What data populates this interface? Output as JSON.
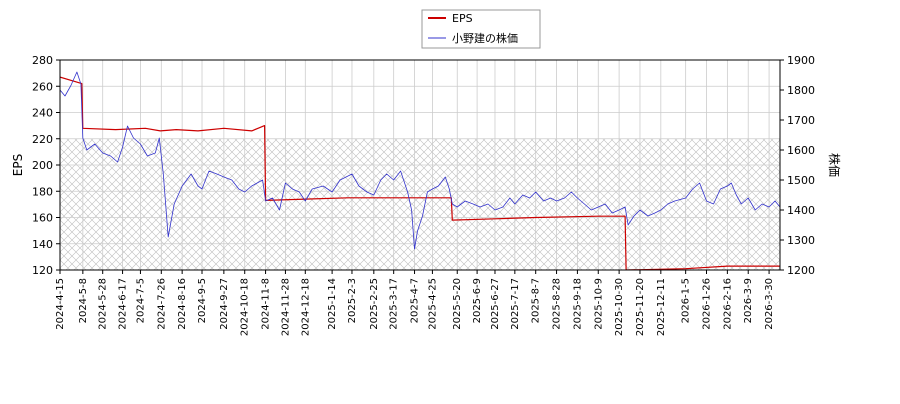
{
  "chart_data": {
    "type": "line",
    "title": "",
    "legend": {
      "placement": "top-center",
      "entries": [
        {
          "name": "EPS",
          "color": "#cc0000"
        },
        {
          "name": "小野建の株価",
          "color": "#3333cc"
        }
      ]
    },
    "xlabel": "",
    "ylabel_left": "EPS",
    "ylabel_right": "株価",
    "ylim_left": [
      120,
      280
    ],
    "ylim_right": [
      1200,
      1900
    ],
    "yticks_left": [
      120,
      140,
      160,
      180,
      200,
      220,
      240,
      260,
      280
    ],
    "yticks_right": [
      1200,
      1300,
      1400,
      1500,
      1600,
      1700,
      1800,
      1900
    ],
    "xlim": [
      "2024-04-15",
      "2026-04-10"
    ],
    "xticks": [
      "2024-4-15",
      "2024-5-8",
      "2024-5-28",
      "2024-6-17",
      "2024-7-5",
      "2024-7-26",
      "2024-8-16",
      "2024-9-5",
      "2024-9-27",
      "2024-10-18",
      "2024-11-8",
      "2024-11-28",
      "2024-12-18",
      "2025-1-14",
      "2025-2-3",
      "2025-2-25",
      "2025-3-17",
      "2025-4-7",
      "2025-4-25",
      "2025-5-20",
      "2025-6-9",
      "2025-6-27",
      "2025-7-17",
      "2025-8-7",
      "2025-8-28",
      "2025-9-18",
      "2025-10-9",
      "2025-10-30",
      "2025-11-20",
      "2025-12-11",
      "2026-1-5",
      "2026-1-26",
      "2026-2-16",
      "2026-3-9",
      "2026-3-30"
    ],
    "grid": true,
    "hatched_band_left": [
      120,
      220
    ],
    "series": [
      {
        "name": "EPS",
        "axis": "left",
        "color": "#cc0000",
        "points": [
          [
            "2024-04-15",
            267
          ],
          [
            "2024-05-07",
            262
          ],
          [
            "2024-05-08",
            228
          ],
          [
            "2024-06-10",
            227
          ],
          [
            "2024-07-10",
            228
          ],
          [
            "2024-07-25",
            226
          ],
          [
            "2024-08-10",
            227
          ],
          [
            "2024-09-01",
            226
          ],
          [
            "2024-09-27",
            228
          ],
          [
            "2024-10-25",
            226
          ],
          [
            "2024-11-07",
            230
          ],
          [
            "2024-11-08",
            173
          ],
          [
            "2024-12-18",
            174
          ],
          [
            "2025-01-30",
            175
          ],
          [
            "2025-03-01",
            175
          ],
          [
            "2025-04-25",
            175
          ],
          [
            "2025-05-14",
            175
          ],
          [
            "2025-05-15",
            158
          ],
          [
            "2025-06-27",
            159
          ],
          [
            "2025-08-07",
            160
          ],
          [
            "2025-10-09",
            161
          ],
          [
            "2025-11-05",
            161
          ],
          [
            "2025-11-06",
            120
          ],
          [
            "2026-01-05",
            121
          ],
          [
            "2026-02-16",
            123
          ],
          [
            "2026-04-10",
            123
          ]
        ]
      },
      {
        "name": "小野建の株価",
        "axis": "right",
        "color": "#3333cc",
        "points": [
          [
            "2024-04-15",
            1800
          ],
          [
            "2024-04-20",
            1780
          ],
          [
            "2024-04-26",
            1815
          ],
          [
            "2024-05-02",
            1860
          ],
          [
            "2024-05-06",
            1820
          ],
          [
            "2024-05-08",
            1640
          ],
          [
            "2024-05-12",
            1600
          ],
          [
            "2024-05-20",
            1620
          ],
          [
            "2024-05-28",
            1590
          ],
          [
            "2024-06-05",
            1580
          ],
          [
            "2024-06-12",
            1560
          ],
          [
            "2024-06-17",
            1610
          ],
          [
            "2024-06-22",
            1680
          ],
          [
            "2024-06-28",
            1640
          ],
          [
            "2024-07-05",
            1620
          ],
          [
            "2024-07-12",
            1580
          ],
          [
            "2024-07-20",
            1590
          ],
          [
            "2024-07-24",
            1640
          ],
          [
            "2024-07-28",
            1520
          ],
          [
            "2024-08-02",
            1310
          ],
          [
            "2024-08-08",
            1420
          ],
          [
            "2024-08-16",
            1480
          ],
          [
            "2024-08-25",
            1520
          ],
          [
            "2024-09-01",
            1480
          ],
          [
            "2024-09-05",
            1470
          ],
          [
            "2024-09-12",
            1530
          ],
          [
            "2024-09-20",
            1520
          ],
          [
            "2024-09-27",
            1510
          ],
          [
            "2024-10-05",
            1500
          ],
          [
            "2024-10-12",
            1470
          ],
          [
            "2024-10-18",
            1460
          ],
          [
            "2024-10-25",
            1480
          ],
          [
            "2024-11-05",
            1500
          ],
          [
            "2024-11-08",
            1430
          ],
          [
            "2024-11-15",
            1440
          ],
          [
            "2024-11-22",
            1400
          ],
          [
            "2024-11-28",
            1490
          ],
          [
            "2024-12-05",
            1470
          ],
          [
            "2024-12-12",
            1460
          ],
          [
            "2024-12-18",
            1430
          ],
          [
            "2024-12-25",
            1470
          ],
          [
            "2025-01-05",
            1480
          ],
          [
            "2025-01-14",
            1460
          ],
          [
            "2025-01-22",
            1500
          ],
          [
            "2025-02-03",
            1520
          ],
          [
            "2025-02-10",
            1480
          ],
          [
            "2025-02-18",
            1460
          ],
          [
            "2025-02-25",
            1450
          ],
          [
            "2025-03-04",
            1500
          ],
          [
            "2025-03-10",
            1520
          ],
          [
            "2025-03-17",
            1500
          ],
          [
            "2025-03-24",
            1530
          ],
          [
            "2025-03-31",
            1460
          ],
          [
            "2025-04-04",
            1400
          ],
          [
            "2025-04-07",
            1270
          ],
          [
            "2025-04-10",
            1330
          ],
          [
            "2025-04-15",
            1380
          ],
          [
            "2025-04-20",
            1460
          ],
          [
            "2025-04-25",
            1470
          ],
          [
            "2025-05-01",
            1480
          ],
          [
            "2025-05-08",
            1510
          ],
          [
            "2025-05-12",
            1470
          ],
          [
            "2025-05-15",
            1420
          ],
          [
            "2025-05-20",
            1410
          ],
          [
            "2025-05-28",
            1430
          ],
          [
            "2025-06-05",
            1420
          ],
          [
            "2025-06-12",
            1410
          ],
          [
            "2025-06-20",
            1420
          ],
          [
            "2025-06-27",
            1400
          ],
          [
            "2025-07-05",
            1410
          ],
          [
            "2025-07-12",
            1440
          ],
          [
            "2025-07-17",
            1420
          ],
          [
            "2025-07-25",
            1450
          ],
          [
            "2025-08-01",
            1440
          ],
          [
            "2025-08-07",
            1460
          ],
          [
            "2025-08-15",
            1430
          ],
          [
            "2025-08-22",
            1440
          ],
          [
            "2025-08-28",
            1430
          ],
          [
            "2025-09-05",
            1440
          ],
          [
            "2025-09-12",
            1460
          ],
          [
            "2025-09-18",
            1440
          ],
          [
            "2025-09-25",
            1420
          ],
          [
            "2025-10-02",
            1400
          ],
          [
            "2025-10-09",
            1410
          ],
          [
            "2025-10-16",
            1420
          ],
          [
            "2025-10-23",
            1390
          ],
          [
            "2025-10-30",
            1400
          ],
          [
            "2025-11-05",
            1410
          ],
          [
            "2025-11-08",
            1350
          ],
          [
            "2025-11-14",
            1380
          ],
          [
            "2025-11-20",
            1400
          ],
          [
            "2025-11-28",
            1380
          ],
          [
            "2025-12-05",
            1390
          ],
          [
            "2025-12-11",
            1400
          ],
          [
            "2025-12-18",
            1420
          ],
          [
            "2025-12-25",
            1430
          ],
          [
            "2026-01-05",
            1440
          ],
          [
            "2026-01-12",
            1470
          ],
          [
            "2026-01-19",
            1490
          ],
          [
            "2026-01-26",
            1430
          ],
          [
            "2026-02-02",
            1420
          ],
          [
            "2026-02-09",
            1470
          ],
          [
            "2026-02-16",
            1480
          ],
          [
            "2026-02-20",
            1490
          ],
          [
            "2026-02-25",
            1450
          ],
          [
            "2026-03-02",
            1420
          ],
          [
            "2026-03-09",
            1440
          ],
          [
            "2026-03-16",
            1400
          ],
          [
            "2026-03-23",
            1420
          ],
          [
            "2026-03-30",
            1410
          ],
          [
            "2026-04-05",
            1430
          ],
          [
            "2026-04-10",
            1410
          ]
        ]
      }
    ]
  }
}
